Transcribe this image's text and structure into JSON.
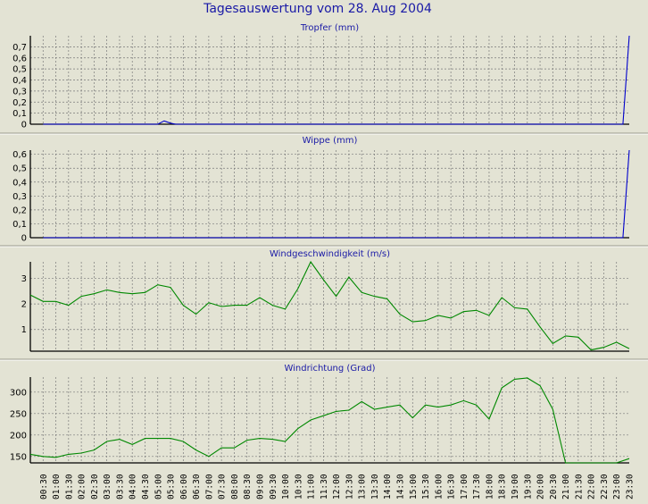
{
  "title": "Tagesauswertung vom 28. Aug 2004",
  "time_labels": [
    "00:30",
    "01:00",
    "01:30",
    "02:00",
    "02:30",
    "03:00",
    "03:30",
    "04:00",
    "04:30",
    "05:00",
    "05:30",
    "06:00",
    "06:30",
    "07:00",
    "07:30",
    "08:00",
    "08:30",
    "09:00",
    "09:30",
    "10:00",
    "10:30",
    "11:00",
    "11:30",
    "12:00",
    "12:30",
    "13:00",
    "13:30",
    "14:00",
    "14:30",
    "15:00",
    "15:30",
    "16:00",
    "16:30",
    "17:00",
    "17:30",
    "18:00",
    "18:30",
    "19:00",
    "19:30",
    "20:00",
    "20:30",
    "21:00",
    "21:30",
    "22:00",
    "22:30",
    "23:00",
    "23:30"
  ],
  "chart_data": [
    {
      "type": "line",
      "title": "Tropfer (mm)",
      "color": "#0000cc",
      "ylim": [
        0,
        0.8
      ],
      "yticks": [
        0,
        0.1,
        0.2,
        0.3,
        0.4,
        0.5,
        0.6,
        0.7
      ],
      "ytick_labels": [
        "0",
        "0,1",
        "0,2",
        "0,3",
        "0,4",
        "0,5",
        "0,6",
        "0,7"
      ],
      "series": [
        {
          "points": [
            [
              0,
              0
            ],
            [
              9,
              0
            ],
            [
              9.5,
              0.03
            ],
            [
              10,
              0.01
            ],
            [
              10.4,
              0
            ],
            [
              45.5,
              0
            ],
            [
              46.9,
              0.8
            ]
          ]
        }
      ]
    },
    {
      "type": "line",
      "title": "Wippe (mm)",
      "color": "#0000cc",
      "ylim": [
        0,
        0.63
      ],
      "yticks": [
        0,
        0.1,
        0.2,
        0.3,
        0.4,
        0.5,
        0.6
      ],
      "ytick_labels": [
        "0",
        "0,1",
        "0,2",
        "0,3",
        "0,4",
        "0,5",
        "0,6"
      ],
      "series": [
        {
          "points": [
            [
              0,
              0
            ],
            [
              45.5,
              0
            ],
            [
              46.9,
              0.63
            ]
          ]
        }
      ]
    },
    {
      "type": "line",
      "title": "Windgeschwindigkeit (m/s)",
      "color": "#008800",
      "ylim": [
        0.15,
        3.65
      ],
      "yticks": [
        1,
        2,
        3
      ],
      "ytick_labels": [
        "1",
        "2",
        "3"
      ],
      "series": [
        {
          "points": [
            [
              -1,
              2.35
            ],
            [
              0,
              2.1
            ],
            [
              1,
              2.1
            ],
            [
              2,
              1.95
            ],
            [
              3,
              2.3
            ],
            [
              4,
              2.4
            ],
            [
              5,
              2.55
            ],
            [
              6,
              2.45
            ],
            [
              7,
              2.4
            ],
            [
              8,
              2.45
            ],
            [
              9,
              2.75
            ],
            [
              10,
              2.65
            ],
            [
              11,
              1.95
            ],
            [
              12,
              1.6
            ],
            [
              13,
              2.05
            ],
            [
              14,
              1.9
            ],
            [
              15,
              1.95
            ],
            [
              16,
              1.95
            ],
            [
              17,
              2.25
            ],
            [
              18,
              1.95
            ],
            [
              19,
              1.8
            ],
            [
              20,
              2.6
            ],
            [
              21,
              3.65
            ],
            [
              22,
              2.95
            ],
            [
              23,
              2.3
            ],
            [
              24,
              3.05
            ],
            [
              25,
              2.45
            ],
            [
              26,
              2.3
            ],
            [
              27,
              2.2
            ],
            [
              28,
              1.6
            ],
            [
              29,
              1.3
            ],
            [
              30,
              1.35
            ],
            [
              31,
              1.55
            ],
            [
              32,
              1.45
            ],
            [
              33,
              1.7
            ],
            [
              34,
              1.75
            ],
            [
              35,
              1.55
            ],
            [
              36,
              2.25
            ],
            [
              37,
              1.85
            ],
            [
              38,
              1.8
            ],
            [
              39,
              1.1
            ],
            [
              40,
              0.45
            ],
            [
              41,
              0.75
            ],
            [
              42,
              0.7
            ],
            [
              43,
              0.2
            ],
            [
              44,
              0.3
            ],
            [
              45,
              0.5
            ],
            [
              46,
              0.25
            ]
          ]
        }
      ]
    },
    {
      "type": "line",
      "title": "Windrichtung (Grad)",
      "color": "#008800",
      "ylim": [
        135,
        335
      ],
      "yticks": [
        150,
        200,
        250,
        300
      ],
      "ytick_labels": [
        "150",
        "200",
        "250",
        "300"
      ],
      "series": [
        {
          "points": [
            [
              -1,
              155
            ],
            [
              0,
              150
            ],
            [
              1,
              148
            ],
            [
              2,
              155
            ],
            [
              3,
              158
            ],
            [
              4,
              165
            ],
            [
              5,
              185
            ],
            [
              6,
              190
            ],
            [
              7,
              178
            ],
            [
              8,
              192
            ],
            [
              9,
              192
            ],
            [
              10,
              192
            ],
            [
              11,
              185
            ],
            [
              12,
              165
            ],
            [
              13,
              150
            ],
            [
              14,
              170
            ],
            [
              15,
              170
            ],
            [
              16,
              188
            ],
            [
              17,
              192
            ],
            [
              18,
              190
            ],
            [
              19,
              185
            ],
            [
              20,
              215
            ],
            [
              21,
              235
            ],
            [
              22,
              245
            ],
            [
              23,
              255
            ],
            [
              24,
              258
            ],
            [
              25,
              278
            ],
            [
              26,
              260
            ],
            [
              27,
              265
            ],
            [
              28,
              270
            ],
            [
              29,
              240
            ],
            [
              30,
              270
            ],
            [
              31,
              265
            ],
            [
              32,
              270
            ],
            [
              33,
              280
            ],
            [
              34,
              270
            ],
            [
              35,
              237
            ],
            [
              36,
              310
            ],
            [
              37,
              330
            ],
            [
              38,
              333
            ],
            [
              39,
              315
            ],
            [
              40,
              260
            ],
            [
              41,
              135
            ],
            [
              42,
              135
            ],
            [
              43,
              135
            ],
            [
              44,
              135
            ],
            [
              45,
              135
            ],
            [
              46,
              145
            ]
          ]
        }
      ]
    }
  ]
}
